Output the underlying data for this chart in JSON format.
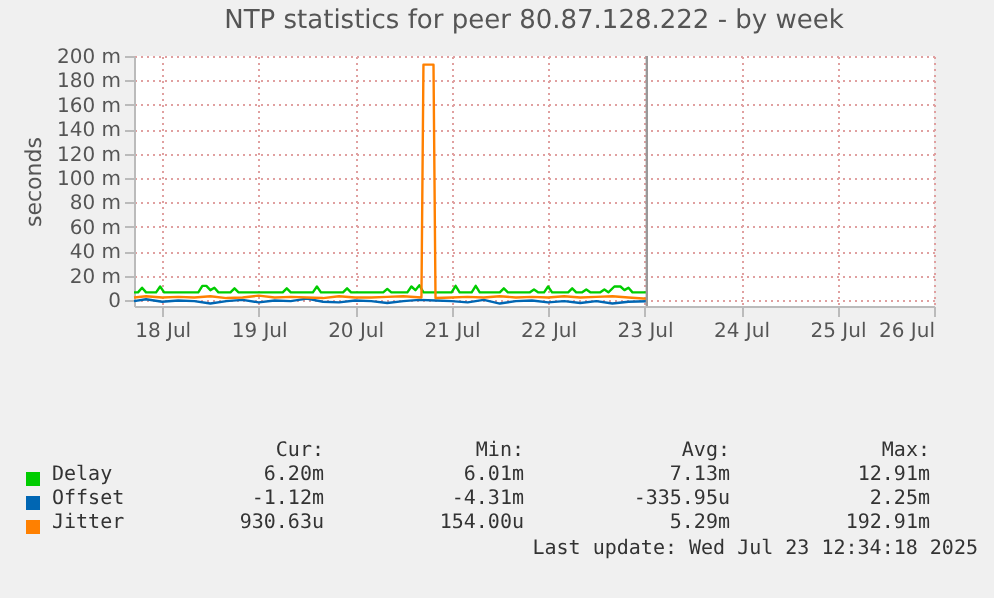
{
  "chart_data": {
    "type": "line",
    "title": "NTP statistics for peer 80.87.128.222 - by week",
    "ylabel": "seconds",
    "xlim": [
      "2025-07-18T05:00",
      "2025-07-26T12:00"
    ],
    "xticks": [
      {
        "value": "2025-07-18T12:00",
        "label": "18 Jul"
      },
      {
        "value": "2025-07-19T12:00",
        "label": "19 Jul"
      },
      {
        "value": "2025-07-20T12:00",
        "label": "20 Jul"
      },
      {
        "value": "2025-07-21T12:00",
        "label": "21 Jul"
      },
      {
        "value": "2025-07-22T12:00",
        "label": "22 Jul"
      },
      {
        "value": "2025-07-23T12:00",
        "label": "23 Jul"
      },
      {
        "value": "2025-07-24T12:00",
        "label": "24 Jul"
      },
      {
        "value": "2025-07-25T12:00",
        "label": "25 Jul"
      },
      {
        "value": "2025-07-26T12:00",
        "label": "26 Jul"
      }
    ],
    "ylim": [
      -5,
      200
    ],
    "yticks": [
      0,
      {
        "value": 20,
        "label": "20 m"
      },
      {
        "value": 40,
        "label": "40 m"
      },
      {
        "value": 60,
        "label": "60 m"
      },
      {
        "value": 80,
        "label": "80 m"
      },
      {
        "value": 100,
        "label": "100 m"
      },
      {
        "value": 120,
        "label": "120 m"
      },
      {
        "value": 140,
        "label": "140 m"
      },
      {
        "value": 160,
        "label": "160 m"
      },
      {
        "value": 180,
        "label": "180 m"
      },
      {
        "value": 200,
        "label": "200 m"
      }
    ],
    "grid": true,
    "legend": "bottom",
    "marker": "none",
    "line_style": "solid",
    "ref_lines": [
      {
        "axis": "x",
        "value": "2025-07-23T12:34",
        "color": "#999999"
      }
    ],
    "series": [
      {
        "name": "Delay",
        "color": "#00cc00",
        "x": [
          "2025-07-18T05:00",
          "2025-07-18T06:00",
          "2025-07-18T07:00",
          "2025-07-18T08:00",
          "2025-07-18T10:30",
          "2025-07-18T11:30",
          "2025-07-18T12:30",
          "2025-07-18T21:00",
          "2025-07-18T22:00",
          "2025-07-18T23:00",
          "2025-07-19T00:00",
          "2025-07-19T01:00",
          "2025-07-19T02:00",
          "2025-07-19T05:00",
          "2025-07-19T06:00",
          "2025-07-19T07:00",
          "2025-07-19T18:00",
          "2025-07-19T19:00",
          "2025-07-19T20:00",
          "2025-07-20T01:30",
          "2025-07-20T02:30",
          "2025-07-20T03:30",
          "2025-07-20T09:00",
          "2025-07-20T10:00",
          "2025-07-20T11:00",
          "2025-07-20T19:00",
          "2025-07-20T20:00",
          "2025-07-20T21:00",
          "2025-07-21T01:00",
          "2025-07-21T02:00",
          "2025-07-21T03:00",
          "2025-07-21T04:00",
          "2025-07-21T05:00",
          "2025-07-21T12:00",
          "2025-07-21T13:00",
          "2025-07-21T14:00",
          "2025-07-21T17:00",
          "2025-07-21T18:00",
          "2025-07-21T19:00",
          "2025-07-22T00:00",
          "2025-07-22T01:00",
          "2025-07-22T02:00",
          "2025-07-22T07:30",
          "2025-07-22T08:30",
          "2025-07-22T09:30",
          "2025-07-22T11:00",
          "2025-07-22T12:00",
          "2025-07-22T13:00",
          "2025-07-22T17:00",
          "2025-07-22T18:00",
          "2025-07-22T19:00",
          "2025-07-22T20:30",
          "2025-07-22T21:30",
          "2025-07-22T22:30",
          "2025-07-23T01:00",
          "2025-07-23T02:00",
          "2025-07-23T03:00",
          "2025-07-23T04:30",
          "2025-07-23T06:00",
          "2025-07-23T07:00",
          "2025-07-23T08:00",
          "2025-07-23T09:00",
          "2025-07-23T12:30"
        ],
        "values": [
          6.2,
          6.2,
          10,
          6.2,
          6.2,
          11,
          6.2,
          6.2,
          11.5,
          11.5,
          8,
          10,
          6.2,
          6.2,
          9.5,
          6.2,
          6.2,
          9.5,
          6.2,
          6.2,
          11,
          6.2,
          6.2,
          9.5,
          6.2,
          6.2,
          9,
          6.2,
          6.2,
          11,
          8,
          12,
          6.2,
          6.2,
          11.5,
          6.2,
          6.2,
          11.5,
          6.2,
          6.2,
          9.5,
          6.2,
          6.2,
          8.5,
          6.2,
          6.2,
          11,
          6.2,
          6.2,
          9.5,
          6.2,
          6.2,
          8.5,
          6.2,
          6.2,
          8.5,
          6.2,
          11,
          11,
          8,
          10,
          6.2,
          6.2
        ]
      },
      {
        "name": "Offset",
        "color": "#0066b3",
        "x": [
          "2025-07-18T05:00",
          "2025-07-18T08:00",
          "2025-07-18T12:00",
          "2025-07-18T16:00",
          "2025-07-18T20:00",
          "2025-07-19T00:00",
          "2025-07-19T04:00",
          "2025-07-19T08:00",
          "2025-07-19T12:00",
          "2025-07-19T16:00",
          "2025-07-19T20:00",
          "2025-07-20T00:00",
          "2025-07-20T04:00",
          "2025-07-20T08:00",
          "2025-07-20T12:00",
          "2025-07-20T16:00",
          "2025-07-20T20:00",
          "2025-07-21T00:00",
          "2025-07-21T04:00",
          "2025-07-21T08:00",
          "2025-07-21T12:00",
          "2025-07-21T16:00",
          "2025-07-21T20:00",
          "2025-07-22T00:00",
          "2025-07-22T04:00",
          "2025-07-22T08:00",
          "2025-07-22T12:00",
          "2025-07-22T16:00",
          "2025-07-22T20:00",
          "2025-07-23T00:00",
          "2025-07-23T04:00",
          "2025-07-23T08:00",
          "2025-07-23T12:30"
        ],
        "values": [
          -1,
          0.5,
          -1.5,
          -0.5,
          -1,
          -3,
          -1,
          0,
          -2,
          -0.5,
          -1,
          1,
          -1.5,
          -2,
          -0.5,
          -1,
          -2.5,
          -1,
          0,
          -0.5,
          -1,
          -2,
          0,
          -3,
          -1,
          -0.5,
          -2,
          -1,
          -2.5,
          -1,
          -3,
          -1.5,
          -1.1
        ]
      },
      {
        "name": "Jitter",
        "color": "#ff8000",
        "x": [
          "2025-07-18T05:00",
          "2025-07-18T08:00",
          "2025-07-18T12:00",
          "2025-07-18T16:00",
          "2025-07-18T20:00",
          "2025-07-19T00:00",
          "2025-07-19T04:00",
          "2025-07-19T08:00",
          "2025-07-19T12:00",
          "2025-07-19T16:00",
          "2025-07-19T20:00",
          "2025-07-20T00:00",
          "2025-07-20T04:00",
          "2025-07-20T08:00",
          "2025-07-20T12:00",
          "2025-07-20T16:00",
          "2025-07-20T20:00",
          "2025-07-21T00:00",
          "2025-07-21T04:30",
          "2025-07-21T05:00",
          "2025-07-21T06:00",
          "2025-07-21T07:30",
          "2025-07-21T08:00",
          "2025-07-21T12:00",
          "2025-07-21T16:00",
          "2025-07-21T20:00",
          "2025-07-22T00:00",
          "2025-07-22T04:00",
          "2025-07-22T08:00",
          "2025-07-22T12:00",
          "2025-07-22T16:00",
          "2025-07-22T20:00",
          "2025-07-23T00:00",
          "2025-07-23T04:00",
          "2025-07-23T08:00",
          "2025-07-23T12:30"
        ],
        "values": [
          2,
          3,
          2,
          2.5,
          2,
          3,
          1.5,
          2,
          3.5,
          2,
          2.5,
          2,
          1.5,
          3,
          2,
          2,
          2.5,
          3,
          2,
          192.9,
          192.9,
          192.9,
          1.5,
          2,
          2.5,
          2,
          3,
          2,
          2.5,
          2,
          3,
          2,
          2.5,
          3,
          2,
          0.9
        ]
      }
    ],
    "annotations": [
      "Cur:",
      "Min:",
      "Avg:",
      "Max:",
      "6.20m",
      "6.01m",
      "7.13m",
      "12.91m",
      "-1.12m",
      "-4.31m",
      "-335.95u",
      "2.25m",
      "930.63u",
      "154.00u",
      "5.29m",
      "192.91m",
      "Last update: Wed Jul 23 12:34:18 2025"
    ]
  }
}
